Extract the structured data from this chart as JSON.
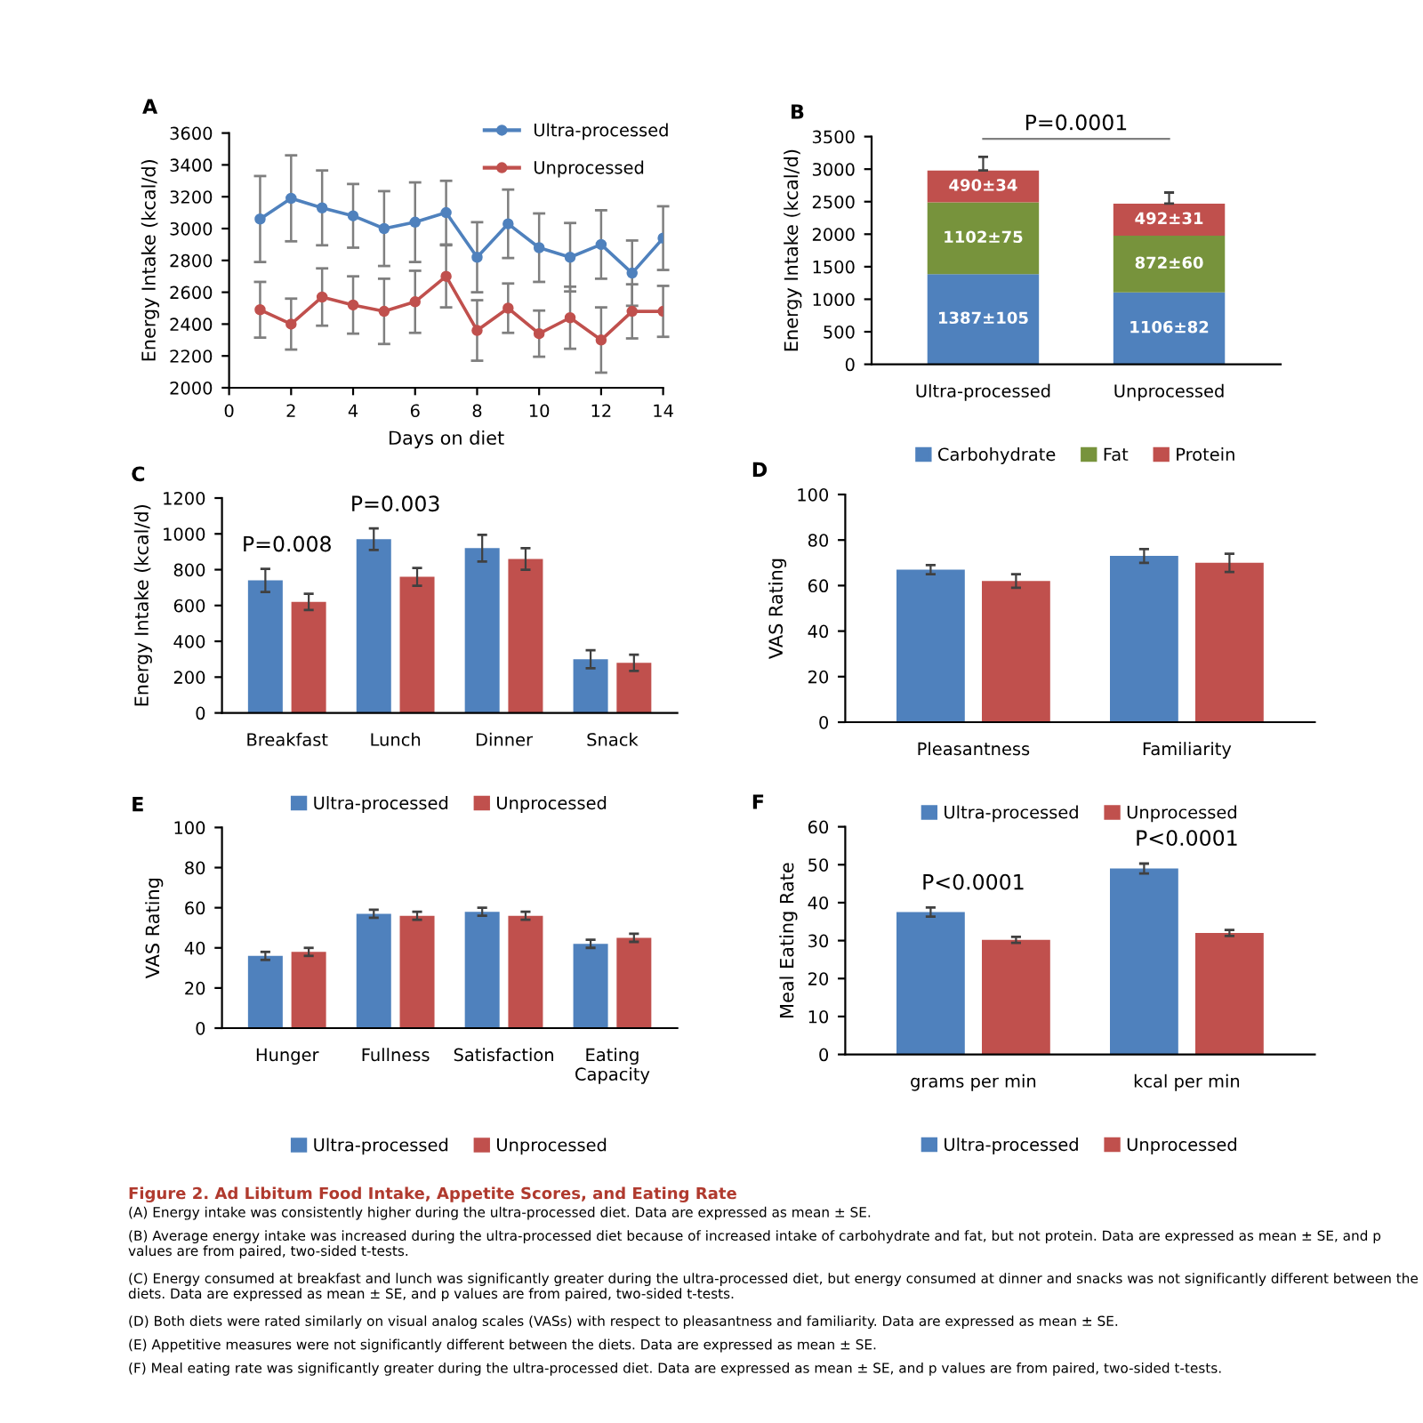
{
  "chart_data": [
    {
      "type": "line",
      "title": "A",
      "xlabel": "Days on diet",
      "ylabel": "Energy Intake (kcal/d)",
      "x": [
        1,
        2,
        3,
        4,
        5,
        6,
        7,
        8,
        9,
        10,
        11,
        12,
        13,
        14
      ],
      "xlim": [
        0,
        14
      ],
      "xticks": [
        0,
        2,
        4,
        6,
        8,
        10,
        12,
        14
      ],
      "ylim": [
        2000,
        3600
      ],
      "yticks": [
        2000,
        2200,
        2400,
        2600,
        2800,
        3000,
        3200,
        3400,
        3600
      ],
      "marker": "circle",
      "legend": "top right",
      "grid": false,
      "series": [
        {
          "name": "Ultra-processed",
          "color": "#4f81bd",
          "values": [
            3060,
            3190,
            3130,
            3080,
            3000,
            3040,
            3100,
            2820,
            3030,
            2880,
            2820,
            2900,
            2720,
            2940
          ],
          "errors": [
            270,
            270,
            235,
            200,
            235,
            250,
            200,
            220,
            215,
            215,
            215,
            215,
            205,
            200
          ]
        },
        {
          "name": "Unprocessed",
          "color": "#c0504d",
          "values": [
            2490,
            2400,
            2570,
            2520,
            2480,
            2540,
            2700,
            2360,
            2500,
            2340,
            2440,
            2300,
            2480,
            2480
          ],
          "errors": [
            175,
            160,
            180,
            180,
            205,
            195,
            195,
            190,
            155,
            145,
            195,
            205,
            170,
            160
          ]
        }
      ]
    },
    {
      "type": "bar",
      "title": "B",
      "ylabel": "Energy Intake (kcal/d)",
      "categories": [
        "Ultra-processed",
        "Unprocessed"
      ],
      "stacked": true,
      "ylim": [
        0,
        3500
      ],
      "yticks": [
        0,
        500,
        1000,
        1500,
        2000,
        2500,
        3000,
        3500
      ],
      "legend": "bottom",
      "grid": false,
      "annotations": [
        "P=0.0001"
      ],
      "series": [
        {
          "name": "Carbohydrate",
          "color": "#4f81bd",
          "values": [
            1387,
            1106
          ],
          "value_labels": [
            "1387±105",
            "1106±82"
          ]
        },
        {
          "name": "Fat",
          "color": "#77933c",
          "values": [
            1102,
            872
          ],
          "value_labels": [
            "1102±75",
            "872±60"
          ]
        },
        {
          "name": "Protein",
          "color": "#c0504d",
          "values": [
            490,
            492
          ],
          "value_labels": [
            "490±34",
            "492±31"
          ],
          "errors": [
            [
              2979,
              3190
            ],
            [
              2470,
              2640
            ]
          ]
        }
      ]
    },
    {
      "type": "bar",
      "title": "C",
      "ylabel": "Energy Intake (kcal/d)",
      "categories": [
        "Breakfast",
        "Lunch",
        "Dinner",
        "Snack"
      ],
      "ylim": [
        0,
        1200
      ],
      "yticks": [
        0,
        200,
        400,
        600,
        800,
        1000,
        1200
      ],
      "legend": "bottom",
      "grid": false,
      "annotations": [
        "P=0.008",
        "P=0.003"
      ],
      "series": [
        {
          "name": "Ultra-processed",
          "color": "#4f81bd",
          "values": [
            740,
            970,
            920,
            300
          ],
          "errors": [
            65,
            60,
            75,
            50
          ]
        },
        {
          "name": "Unprocessed",
          "color": "#c0504d",
          "values": [
            620,
            760,
            860,
            280
          ],
          "errors": [
            45,
            50,
            60,
            45
          ]
        }
      ]
    },
    {
      "type": "bar",
      "title": "D",
      "ylabel": "VAS Rating",
      "categories": [
        "Pleasantness",
        "Familiarity"
      ],
      "ylim": [
        0,
        100
      ],
      "yticks": [
        0,
        20,
        40,
        60,
        80,
        100
      ],
      "legend": "bottom",
      "grid": false,
      "series": [
        {
          "name": "Ultra-processed",
          "color": "#4f81bd",
          "values": [
            67,
            73
          ],
          "errors": [
            2,
            3
          ]
        },
        {
          "name": "Unprocessed",
          "color": "#c0504d",
          "values": [
            62,
            70
          ],
          "errors": [
            3,
            4
          ]
        }
      ]
    },
    {
      "type": "bar",
      "title": "E",
      "ylabel": "VAS Rating",
      "categories": [
        "Hunger",
        "Fullness",
        "Satisfaction",
        "Eating\nCapacity"
      ],
      "ylim": [
        0,
        100
      ],
      "yticks": [
        0,
        20,
        40,
        60,
        80,
        100
      ],
      "legend": "bottom",
      "grid": false,
      "series": [
        {
          "name": "Ultra-processed",
          "color": "#4f81bd",
          "values": [
            36,
            57,
            58,
            42
          ],
          "errors": [
            2,
            2,
            2,
            2
          ]
        },
        {
          "name": "Unprocessed",
          "color": "#c0504d",
          "values": [
            38,
            56,
            56,
            45
          ],
          "errors": [
            2,
            2,
            2,
            2
          ]
        }
      ]
    },
    {
      "type": "bar",
      "title": "F",
      "ylabel": "Meal Eating Rate",
      "categories": [
        "grams per min",
        "kcal per min"
      ],
      "ylim": [
        0,
        60
      ],
      "yticks": [
        0,
        10,
        20,
        30,
        40,
        50,
        60
      ],
      "legend": "bottom",
      "grid": false,
      "annotations": [
        "P<0.0001",
        "P<0.0001"
      ],
      "series": [
        {
          "name": "Ultra-processed",
          "color": "#4f81bd",
          "values": [
            37.5,
            49
          ],
          "errors": [
            1.2,
            1.3
          ]
        },
        {
          "name": "Unprocessed",
          "color": "#c0504d",
          "values": [
            30.2,
            32
          ],
          "errors": [
            0.8,
            0.8
          ]
        }
      ]
    },
    {
      "type": "other",
      "title": "Figure 2. Ad Libitum Food Intake, Appetite Scores, and Eating Rate",
      "annotations": [
        "(A) Energy intake was consistently higher during the ultra-processed diet. Data are expressed as mean ± SE.",
        "(B) Average energy intake was increased during the ultra-processed diet because of increased intake of carbohydrate and fat, but not protein. Data are expressed as mean ± SE, and p values are from paired, two-sided t-tests.",
        "(C) Energy consumed at breakfast and lunch was significantly greater during the ultra-processed diet, but energy consumed at dinner and snacks was not significantly different between the diets. Data are expressed as mean ± SE, and p values are from paired, two-sided t-tests.",
        "(D) Both diets were rated similarly on visual analog scales (VASs) with respect to pleasantness and familiarity. Data are expressed as mean ± SE.",
        "(E) Appetitive measures were not significantly different between the diets. Data are expressed as mean ± SE.",
        "(F) Meal eating rate was significantly greater during the ultra-processed diet. Data are expressed as mean ± SE, and p values are from paired, two-sided t-tests."
      ]
    }
  ]
}
